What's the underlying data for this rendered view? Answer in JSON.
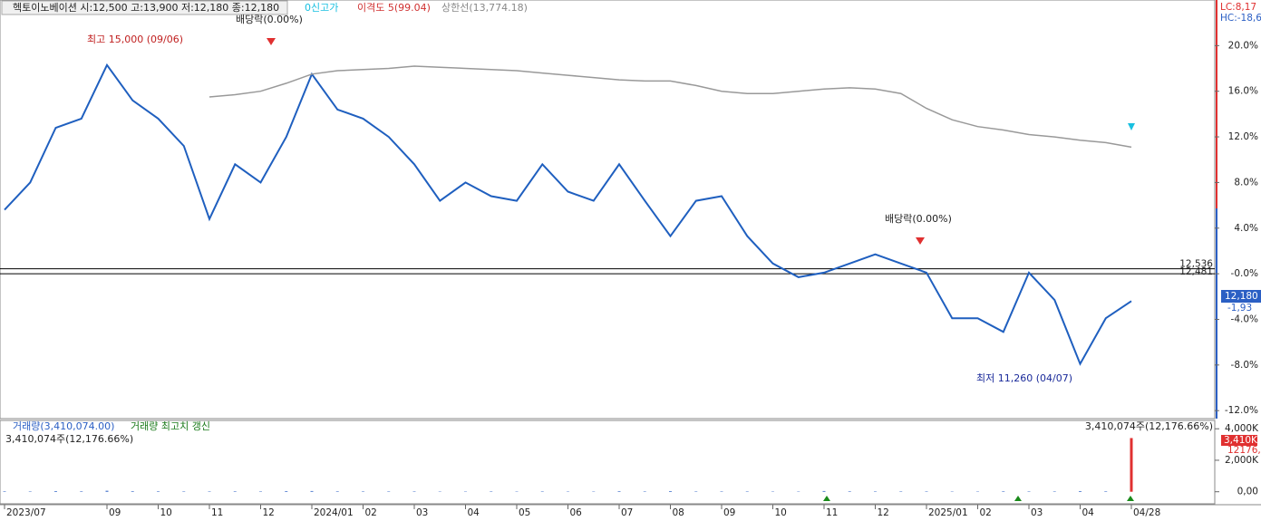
{
  "header": {
    "title": "헥토이노베이션 시:12,500 고:13,900 저:12,180 종:12,180",
    "tag1": "0신고가",
    "tag2": "이격도 5(99.04)",
    "tag3": "상한선(13,774.18)",
    "lc": "LC:8,17",
    "hc": "HC:-18,6",
    "last_price": "12,180",
    "last_change": "-1,93"
  },
  "annotations": {
    "high": "최고 15,000 (09/06)",
    "div1": "배당락(0.00%)",
    "div2": "배당락(0.00%)",
    "low": "최저 11,260 (04/07)"
  },
  "volume_header": {
    "title": "거래량(3,410,074.00)",
    "note": "거래량 최고치 갱신",
    "left": "3,410,074주(12,176.66%)",
    "right": "3,410,074주(12,176.66%)",
    "box": "3,410K",
    "box2": "12176,"
  },
  "chart_data": [
    {
      "type": "line",
      "categories": [
        "2023/07",
        null,
        null,
        null,
        "09",
        null,
        "10",
        null,
        "11",
        null,
        "12",
        null,
        "2024/01",
        null,
        "02",
        null,
        "03",
        null,
        "04",
        null,
        "05",
        null,
        "06",
        null,
        "07",
        null,
        "08",
        null,
        "09",
        null,
        "10",
        null,
        "11",
        null,
        "12",
        null,
        "2025/01",
        null,
        "02",
        null,
        "03",
        null,
        "04",
        null,
        "04/28"
      ],
      "series": [
        {
          "name": "종가",
          "color": "#1f5fbf",
          "values": [
            5.6,
            8,
            12.8,
            13.6,
            18.3,
            15.2,
            13.6,
            11.2,
            4.8,
            9.6,
            8,
            12,
            17.5,
            14.4,
            13.6,
            12,
            9.6,
            6.4,
            8,
            6.8,
            6.4,
            9.6,
            7.2,
            6.4,
            9.6,
            6.4,
            3.3,
            6.4,
            6.8,
            3.3,
            0.9,
            -0.3,
            0.1,
            0.9,
            1.7,
            0.9,
            0.1,
            -3.9,
            -3.9,
            -5.1,
            0.1,
            -2.3,
            -7.9,
            -3.9,
            -2.4
          ]
        },
        {
          "name": "상한선",
          "color": "#999999",
          "values": [
            null,
            null,
            null,
            null,
            null,
            null,
            null,
            null,
            15.5,
            15.7,
            16,
            16.7,
            17.5,
            17.8,
            17.9,
            18,
            18.2,
            18.1,
            18,
            17.9,
            17.8,
            17.6,
            17.4,
            17.2,
            17,
            16.9,
            16.9,
            16.5,
            16,
            15.8,
            15.8,
            16,
            16.2,
            16.3,
            16.2,
            15.8,
            14.5,
            13.5,
            12.9,
            12.6,
            12.2,
            12,
            11.7,
            11.5,
            11.1
          ]
        }
      ],
      "hlines": [
        {
          "value": 0.44,
          "label": "12,536"
        },
        {
          "value": 0,
          "label": "12,481"
        }
      ],
      "ylim": [
        -12.7,
        24
      ],
      "yticks": [
        {
          "value": 20,
          "label": "20.0%"
        },
        {
          "value": 16,
          "label": "16.0%"
        },
        {
          "value": 12,
          "label": "12.0%"
        },
        {
          "value": 8,
          "label": "8.0%"
        },
        {
          "value": 4,
          "label": "4.0%"
        },
        {
          "value": 0,
          "label": "-0.0%"
        },
        {
          "value": -4,
          "label": "-4.0%"
        },
        {
          "value": -8,
          "label": "-8.0%"
        },
        {
          "value": -12,
          "label": "-12.0%"
        }
      ]
    },
    {
      "type": "bar",
      "series": [
        {
          "name": "거래량",
          "color": "#2b5fc4",
          "values": [
            30,
            25,
            40,
            30,
            60,
            35,
            30,
            25,
            25,
            30,
            25,
            40,
            45,
            30,
            25,
            25,
            25,
            20,
            20,
            25,
            20,
            25,
            20,
            20,
            35,
            25,
            40,
            25,
            25,
            25,
            20,
            20,
            45,
            30,
            25,
            25,
            25,
            20,
            20,
            30,
            25,
            25,
            40,
            30,
            3410
          ]
        }
      ],
      "last_color": "#e03030",
      "ylim": [
        -765,
        4530
      ],
      "yticks": [
        {
          "value": 4000,
          "label": "4,000K"
        },
        {
          "value": 2000,
          "label": "2,000K"
        },
        {
          "value": 0,
          "label": "0,00"
        }
      ]
    }
  ]
}
